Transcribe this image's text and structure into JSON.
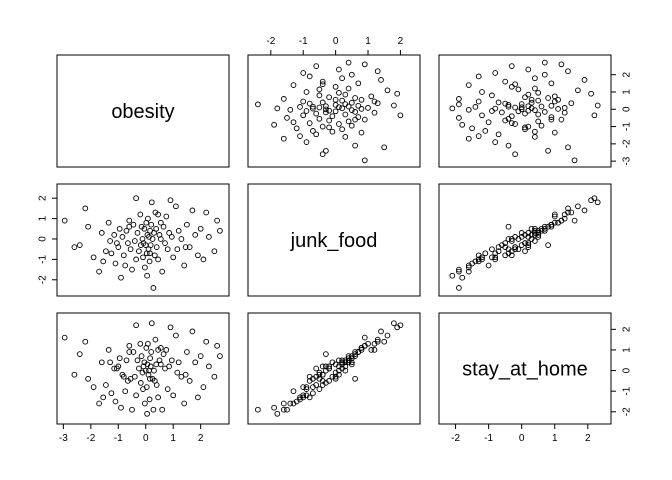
{
  "chart_data": {
    "type": "scatter",
    "variables": [
      "obesity",
      "junk_food",
      "stay_at_home"
    ],
    "axis_ticks": {
      "obesity": [
        "-3",
        "-2",
        "-1",
        "0",
        "1",
        "2"
      ],
      "junk_food": [
        "-2",
        "-1",
        "0",
        "1",
        "2"
      ],
      "stay_at_home": [
        "-2",
        "-1",
        "0",
        "1",
        "2"
      ]
    },
    "ranges": {
      "obesity": [
        -3.05,
        2.85
      ],
      "junk_food": [
        -2.55,
        2.45
      ],
      "stay_at_home": [
        -2.35,
        2.55
      ]
    },
    "observations": {
      "obesity": [
        -2.95,
        -2.6,
        -2.4,
        -2.2,
        -2.1,
        -1.9,
        -1.7,
        -1.6,
        -1.55,
        -1.45,
        -1.35,
        -1.25,
        -1.15,
        -1.1,
        -1.0,
        -0.95,
        -0.9,
        -0.85,
        -0.8,
        -0.75,
        -0.7,
        -0.65,
        -0.6,
        -0.55,
        -0.5,
        -0.45,
        -0.4,
        -0.35,
        -0.3,
        -0.25,
        -0.2,
        -0.18,
        -0.15,
        -0.12,
        -0.1,
        -0.08,
        -0.05,
        -0.03,
        0.0,
        0.02,
        0.04,
        0.06,
        0.08,
        0.1,
        0.12,
        0.14,
        0.16,
        0.18,
        0.2,
        0.22,
        0.25,
        0.28,
        0.3,
        0.33,
        0.35,
        0.38,
        0.4,
        0.45,
        0.5,
        0.55,
        0.6,
        0.65,
        0.7,
        0.75,
        0.8,
        0.85,
        0.9,
        1.0,
        1.1,
        1.2,
        1.3,
        1.4,
        1.5,
        1.6,
        1.7,
        1.8,
        1.9,
        2.0,
        2.1,
        2.2,
        2.3,
        2.5,
        2.6,
        2.7,
        -1.05,
        -0.35,
        0.15,
        0.45,
        0.95,
        1.45,
        -0.6,
        0.05,
        0.55,
        -1.3,
        1.15
      ],
      "junk_food": [
        0.9,
        -0.4,
        -0.3,
        1.5,
        0.6,
        -0.9,
        -1.6,
        0.3,
        -1.1,
        -0.6,
        0.8,
        -0.7,
        0.2,
        -1.2,
        -0.4,
        0.5,
        -1.9,
        0.1,
        -0.8,
        -1.3,
        0.4,
        -0.2,
        0.9,
        -0.5,
        -1.5,
        0.7,
        -0.1,
        -1.0,
        0.3,
        -0.6,
        1.2,
        -0.3,
        0.6,
        0.0,
        -0.9,
        -0.2,
        0.5,
        -1.4,
        -0.3,
        0.8,
        -0.7,
        0.2,
        1.0,
        -0.5,
        0.1,
        -1.1,
        0.4,
        -0.3,
        0.7,
        1.8,
        0.0,
        -2.4,
        0.3,
        -0.8,
        1.3,
        0.5,
        -0.4,
        -1.0,
        0.2,
        0.8,
        -1.6,
        0.6,
        -0.2,
        1.1,
        -0.5,
        0.3,
        1.9,
        -0.9,
        1.6,
        0.4,
        0.0,
        -1.3,
        0.7,
        -0.4,
        1.4,
        0.2,
        -0.8,
        0.5,
        -1.0,
        1.3,
        0.1,
        -0.6,
        0.9,
        0.4,
        -0.2,
        2.0,
        -0.7,
        1.2,
        0.1,
        -0.4,
        0.6,
        -1.8,
        0.0,
        -0.1,
        -0.5
      ],
      "stay_at_home": [
        1.6,
        -0.2,
        0.8,
        1.4,
        -0.4,
        -0.8,
        -1.6,
        0.4,
        -1.3,
        -0.7,
        1.0,
        -1.1,
        0.1,
        -1.5,
        0.2,
        0.6,
        -1.8,
        -0.2,
        -0.3,
        -1.0,
        0.5,
        -0.5,
        1.2,
        -0.4,
        -1.9,
        0.9,
        -0.3,
        -1.2,
        0.5,
        0.1,
        1.3,
        -0.6,
        0.7,
        -0.1,
        -0.9,
        0.2,
        0.4,
        -1.6,
        0.0,
        1.1,
        -0.8,
        0.3,
        1.3,
        -0.2,
        0.0,
        -1.4,
        0.6,
        0.2,
        0.9,
        2.3,
        -0.4,
        -1.9,
        0.0,
        -0.5,
        1.5,
        0.3,
        -0.7,
        -1.3,
        0.5,
        1.1,
        -1.9,
        0.8,
        0.1,
        1.0,
        -0.9,
        0.2,
        2.1,
        -1.2,
        1.7,
        0.4,
        -0.3,
        -1.6,
        0.9,
        -0.5,
        1.9,
        0.4,
        -1.3,
        0.7,
        -0.8,
        1.4,
        0.2,
        -0.3,
        1.2,
        0.7,
        0.1,
        2.2,
        -0.4,
        1.0,
        0.5,
        -0.2,
        0.9,
        -2.1,
        0.3,
        0.4,
        -0.1
      ]
    }
  }
}
